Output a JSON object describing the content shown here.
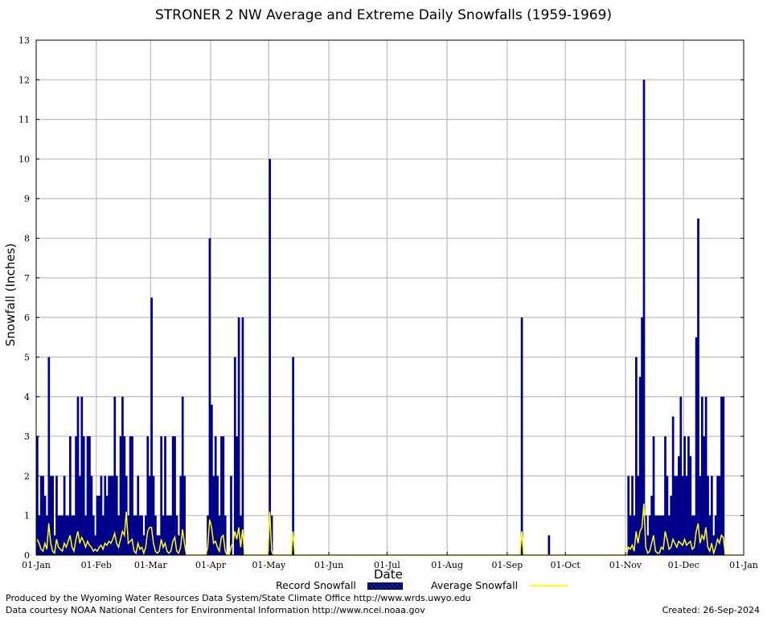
{
  "chart_data": {
    "type": "bar",
    "title": "STRONER 2 NW Average and Extreme Daily Snowfalls (1959-1969)",
    "xlabel": "Date",
    "ylabel": "Snowfall (Inches)",
    "ylim": [
      0,
      13
    ],
    "yticks": [
      "0",
      "1",
      "2",
      "3",
      "4",
      "5",
      "6",
      "7",
      "8",
      "9",
      "10",
      "11",
      "12",
      "13"
    ],
    "xticks": [
      "01-Jan",
      "01-Feb",
      "01-Mar",
      "01-Apr",
      "01-May",
      "01-Jun",
      "01-Jul",
      "01-Aug",
      "01-Sep",
      "01-Oct",
      "01-Nov",
      "01-Dec",
      "01-Jan"
    ],
    "grid": true,
    "legend_placement": "bottom",
    "series": [
      {
        "name": "Record Snowfall",
        "style": "bar",
        "color": "#00008b",
        "points": [
          [
            1,
            3
          ],
          [
            2,
            1
          ],
          [
            3,
            2
          ],
          [
            4,
            2
          ],
          [
            5,
            1.5
          ],
          [
            6,
            1
          ],
          [
            7,
            5
          ],
          [
            8,
            2
          ],
          [
            9,
            2
          ],
          [
            10,
            0.5
          ],
          [
            11,
            2
          ],
          [
            12,
            1
          ],
          [
            13,
            1
          ],
          [
            14,
            1
          ],
          [
            15,
            2
          ],
          [
            16,
            1
          ],
          [
            17,
            1
          ],
          [
            18,
            3
          ],
          [
            19,
            1
          ],
          [
            20,
            1
          ],
          [
            21,
            3
          ],
          [
            22,
            4
          ],
          [
            23,
            2
          ],
          [
            24,
            4
          ],
          [
            25,
            3
          ],
          [
            26,
            1
          ],
          [
            27,
            3
          ],
          [
            28,
            3
          ],
          [
            29,
            2
          ],
          [
            30,
            1
          ],
          [
            31,
            0.5
          ],
          [
            32,
            1.5
          ],
          [
            33,
            1.5
          ],
          [
            34,
            2
          ],
          [
            35,
            1
          ],
          [
            36,
            2
          ],
          [
            37,
            1.5
          ],
          [
            38,
            2
          ],
          [
            39,
            2
          ],
          [
            40,
            2
          ],
          [
            41,
            4
          ],
          [
            42,
            2
          ],
          [
            43,
            1
          ],
          [
            44,
            3
          ],
          [
            45,
            4
          ],
          [
            46,
            3
          ],
          [
            47,
            2
          ],
          [
            48,
            1
          ],
          [
            49,
            3
          ],
          [
            50,
            3
          ],
          [
            51,
            1
          ],
          [
            52,
            1
          ],
          [
            53,
            2
          ],
          [
            54,
            1
          ],
          [
            55,
            1
          ],
          [
            56,
            0.5
          ],
          [
            57,
            1
          ],
          [
            58,
            3
          ],
          [
            59,
            2
          ],
          [
            60,
            6.5
          ],
          [
            61,
            2
          ],
          [
            62,
            1
          ],
          [
            63,
            0.5
          ],
          [
            64,
            0.5
          ],
          [
            65,
            3
          ],
          [
            66,
            1
          ],
          [
            67,
            3
          ],
          [
            68,
            1
          ],
          [
            69,
            1
          ],
          [
            70,
            1
          ],
          [
            71,
            3
          ],
          [
            72,
            3
          ],
          [
            73,
            1
          ],
          [
            74,
            0.5
          ],
          [
            75,
            2
          ],
          [
            76,
            4
          ],
          [
            77,
            2
          ],
          [
            89,
            1
          ],
          [
            90,
            8
          ],
          [
            91,
            3.8
          ],
          [
            92,
            2
          ],
          [
            93,
            3
          ],
          [
            94,
            2
          ],
          [
            95,
            1
          ],
          [
            96,
            3
          ],
          [
            97,
            3
          ],
          [
            98,
            1
          ],
          [
            101,
            2
          ],
          [
            103,
            5
          ],
          [
            104,
            3
          ],
          [
            105,
            6
          ],
          [
            106,
            1
          ],
          [
            107,
            6
          ],
          [
            121,
            10
          ],
          [
            122,
            1
          ],
          [
            133,
            5
          ],
          [
            251,
            6
          ],
          [
            265,
            0.5
          ],
          [
            306,
            2
          ],
          [
            307,
            1
          ],
          [
            308,
            2
          ],
          [
            309,
            1
          ],
          [
            310,
            5
          ],
          [
            311,
            2
          ],
          [
            312,
            4.5
          ],
          [
            313,
            6
          ],
          [
            314,
            12
          ],
          [
            315,
            1
          ],
          [
            316,
            0.5
          ],
          [
            317,
            1
          ],
          [
            318,
            1.5
          ],
          [
            319,
            3
          ],
          [
            320,
            1
          ],
          [
            321,
            1
          ],
          [
            322,
            1
          ],
          [
            323,
            1
          ],
          [
            324,
            1
          ],
          [
            325,
            3
          ],
          [
            326,
            2
          ],
          [
            327,
            1
          ],
          [
            328,
            1.5
          ],
          [
            329,
            3.5
          ],
          [
            330,
            2
          ],
          [
            331,
            2
          ],
          [
            332,
            2.5
          ],
          [
            333,
            4
          ],
          [
            334,
            2
          ],
          [
            335,
            3
          ],
          [
            336,
            2
          ],
          [
            337,
            3
          ],
          [
            338,
            2.5
          ],
          [
            339,
            1
          ],
          [
            340,
            1
          ],
          [
            341,
            5.5
          ],
          [
            342,
            8.5
          ],
          [
            343,
            2
          ],
          [
            344,
            4
          ],
          [
            345,
            3
          ],
          [
            346,
            4
          ],
          [
            347,
            2
          ],
          [
            348,
            1
          ],
          [
            349,
            2
          ],
          [
            350,
            0.5
          ],
          [
            351,
            1
          ],
          [
            352,
            2
          ],
          [
            353,
            2
          ],
          [
            354,
            4
          ],
          [
            355,
            4
          ]
        ]
      },
      {
        "name": "Average Snowfall",
        "style": "line",
        "color": "#ffff00",
        "points": [
          [
            1,
            0.4
          ],
          [
            2,
            0.3
          ],
          [
            3,
            0.15
          ],
          [
            4,
            0.1
          ],
          [
            5,
            0.3
          ],
          [
            6,
            0.15
          ],
          [
            7,
            0.8
          ],
          [
            8,
            0.3
          ],
          [
            9,
            0.1
          ],
          [
            10,
            0.05
          ],
          [
            11,
            0.4
          ],
          [
            12,
            0.2
          ],
          [
            13,
            0.15
          ],
          [
            14,
            0.1
          ],
          [
            15,
            0.3
          ],
          [
            16,
            0.2
          ],
          [
            17,
            0.35
          ],
          [
            18,
            0.5
          ],
          [
            19,
            0.2
          ],
          [
            20,
            0.1
          ],
          [
            21,
            0.4
          ],
          [
            22,
            0.6
          ],
          [
            23,
            0.3
          ],
          [
            24,
            0.45
          ],
          [
            25,
            0.35
          ],
          [
            26,
            0.2
          ],
          [
            27,
            0.35
          ],
          [
            28,
            0.25
          ],
          [
            29,
            0.2
          ],
          [
            30,
            0.1
          ],
          [
            31,
            0.15
          ],
          [
            32,
            0.1
          ],
          [
            33,
            0.2
          ],
          [
            34,
            0.25
          ],
          [
            35,
            0.15
          ],
          [
            36,
            0.3
          ],
          [
            37,
            0.25
          ],
          [
            38,
            0.35
          ],
          [
            39,
            0.3
          ],
          [
            40,
            0.4
          ],
          [
            41,
            0.55
          ],
          [
            42,
            0.3
          ],
          [
            43,
            0.2
          ],
          [
            44,
            0.4
          ],
          [
            45,
            0.6
          ],
          [
            46,
            0.5
          ],
          [
            47,
            1.1
          ],
          [
            48,
            0.3
          ],
          [
            49,
            0.35
          ],
          [
            50,
            0.4
          ],
          [
            51,
            0.1
          ],
          [
            52,
            0.05
          ],
          [
            53,
            0.3
          ],
          [
            54,
            0.15
          ],
          [
            55,
            0.2
          ],
          [
            56,
            0.05
          ],
          [
            57,
            0.2
          ],
          [
            58,
            0.6
          ],
          [
            59,
            0.7
          ],
          [
            60,
            0.7
          ],
          [
            61,
            0.3
          ],
          [
            62,
            0.1
          ],
          [
            63,
            0.05
          ],
          [
            64,
            0.1
          ],
          [
            65,
            0.4
          ],
          [
            66,
            0.2
          ],
          [
            67,
            0.3
          ],
          [
            68,
            0.1
          ],
          [
            69,
            0.05
          ],
          [
            70,
            0.1
          ],
          [
            71,
            0.35
          ],
          [
            72,
            0.45
          ],
          [
            73,
            0.1
          ],
          [
            74,
            0.05
          ],
          [
            75,
            0.2
          ],
          [
            76,
            0.65
          ],
          [
            77,
            0.3
          ],
          [
            78,
            0
          ],
          [
            88,
            0
          ],
          [
            89,
            0.2
          ],
          [
            90,
            0.9
          ],
          [
            91,
            0.7
          ],
          [
            92,
            0.3
          ],
          [
            93,
            0.35
          ],
          [
            94,
            0.2
          ],
          [
            95,
            0.1
          ],
          [
            96,
            0.45
          ],
          [
            97,
            0.5
          ],
          [
            98,
            0.1
          ],
          [
            99,
            0
          ],
          [
            100,
            0
          ],
          [
            101,
            0.2
          ],
          [
            102,
            0.3
          ],
          [
            103,
            0.6
          ],
          [
            104,
            0.4
          ],
          [
            105,
            0.7
          ],
          [
            106,
            0.2
          ],
          [
            107,
            0.65
          ],
          [
            108,
            0
          ],
          [
            120,
            0
          ],
          [
            121,
            1.1
          ],
          [
            122,
            0.1
          ],
          [
            123,
            0
          ],
          [
            132,
            0
          ],
          [
            133,
            0.6
          ],
          [
            134,
            0
          ],
          [
            250,
            0
          ],
          [
            251,
            0.6
          ],
          [
            252,
            0
          ],
          [
            305,
            0
          ],
          [
            306,
            0.2
          ],
          [
            307,
            0.15
          ],
          [
            308,
            0.25
          ],
          [
            309,
            0.1
          ],
          [
            310,
            0.6
          ],
          [
            311,
            0.3
          ],
          [
            312,
            0.6
          ],
          [
            313,
            0.7
          ],
          [
            314,
            1.3
          ],
          [
            315,
            0.2
          ],
          [
            316,
            0.05
          ],
          [
            317,
            0.1
          ],
          [
            318,
            0.3
          ],
          [
            319,
            0.5
          ],
          [
            320,
            0.1
          ],
          [
            321,
            0.05
          ],
          [
            322,
            0.05
          ],
          [
            323,
            0.2
          ],
          [
            324,
            0.15
          ],
          [
            325,
            0.6
          ],
          [
            326,
            0.4
          ],
          [
            327,
            0.15
          ],
          [
            328,
            0.2
          ],
          [
            329,
            0.4
          ],
          [
            330,
            0.3
          ],
          [
            331,
            0.2
          ],
          [
            332,
            0.35
          ],
          [
            333,
            0.3
          ],
          [
            334,
            0.25
          ],
          [
            335,
            0.4
          ],
          [
            336,
            0.25
          ],
          [
            337,
            0.3
          ],
          [
            338,
            0.35
          ],
          [
            339,
            0.15
          ],
          [
            340,
            0.2
          ],
          [
            341,
            0.6
          ],
          [
            342,
            0.8
          ],
          [
            343,
            0.3
          ],
          [
            344,
            0.5
          ],
          [
            345,
            0.4
          ],
          [
            346,
            0.7
          ],
          [
            347,
            0.2
          ],
          [
            348,
            0.1
          ],
          [
            349,
            0.3
          ],
          [
            350,
            0.05
          ],
          [
            351,
            0.2
          ],
          [
            352,
            0.4
          ],
          [
            353,
            0.3
          ],
          [
            354,
            0.5
          ],
          [
            355,
            0.45
          ]
        ]
      }
    ]
  },
  "legend": {
    "record_label": "Record Snowfall",
    "average_label": "Average Snowfall"
  },
  "footer": {
    "produced": "Produced by the Wyoming Water Resources Data System/State Climate Office http://www.wrds.uwyo.edu",
    "courtesy": "Data courtesy NOAA National Centers for Environmental Information http://www.ncei.noaa.gov",
    "created": "Created:  26-Sep-2024"
  }
}
